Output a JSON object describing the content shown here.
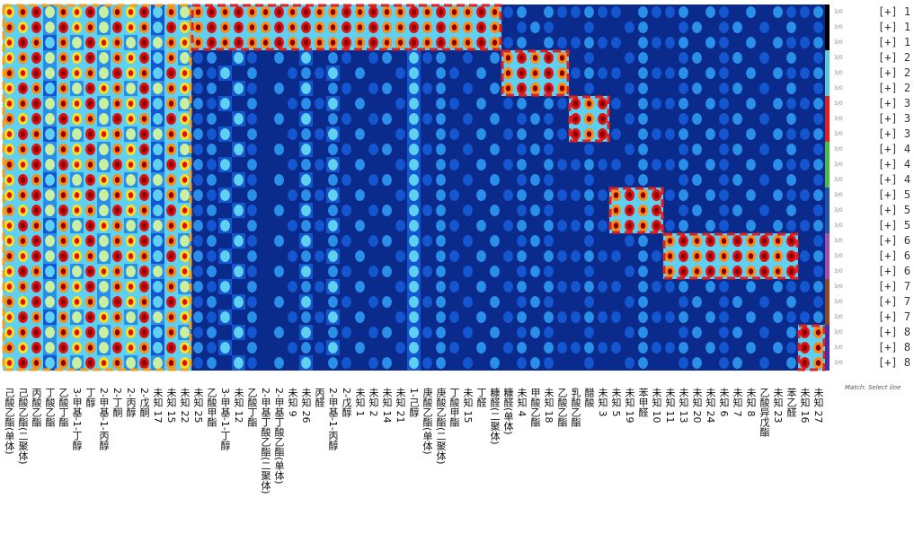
{
  "chart_data": {
    "type": "heatmap",
    "title": "",
    "value_scale": [
      0,
      9
    ],
    "colormap": [
      "#06123a",
      "#0a2a8c",
      "#1456d0",
      "#2a8fe8",
      "#5fd0f0",
      "#c8f0a0",
      "#ffe020",
      "#ff8a10",
      "#e01010",
      "#8a0000"
    ],
    "row_labels": [
      "[+] 1",
      "[+] 1",
      "[+] 1",
      "[+] 2",
      "[+] 2",
      "[+] 2",
      "[+] 3",
      "[+] 3",
      "[+] 3",
      "[+] 4",
      "[+] 4",
      "[+] 4",
      "[+] 5",
      "[+] 5",
      "[+] 5",
      "[+] 6",
      "[+] 6",
      "[+] 6",
      "[+] 7",
      "[+] 7",
      "[+] 7",
      "[+] 8",
      "[+] 8",
      "[+] 8"
    ],
    "row_tags": [
      "3/0",
      "3/0",
      "3/0",
      "3/0",
      "3/0",
      "3/0",
      "3/0",
      "3/0",
      "3/0",
      "3/0",
      "3/0",
      "3/0",
      "3/0",
      "3/0",
      "3/0",
      "3/0",
      "3/0",
      "3/0",
      "3/0",
      "3/0",
      "3/0",
      "3/0",
      "3/0",
      "3/0"
    ],
    "group_colors": [
      "#000000",
      "#5bc8d6",
      "#e02020",
      "#4cb848",
      "#2255aa",
      "#9b4fb0",
      "#8a4a2a",
      "#4a2ea0"
    ],
    "column_labels": [
      "己酸乙酯(单体)",
      "己酸乙酯(二聚体)",
      "丙酸乙酯",
      "丁酸乙酯",
      "乙酸丁酯",
      "3-甲基-1-丁醇",
      "丁醇",
      "2-甲基-1-丙醇",
      "2-丁酮",
      "2-丙醇",
      "2-戊酮",
      "未知 17",
      "未知 15",
      "未知 22",
      "未知 25",
      "乙酸甲酯",
      "3-甲基-1-丁醇",
      "未知 12",
      "乙酸丁酯",
      "2-甲基丁酸乙酯(二聚体)",
      "2-甲基丁酸乙酯(单体)",
      "未知 9",
      "未知 26",
      "丙醛",
      "2-甲基-1-丙醇",
      "2-戊醇",
      "未知 1",
      "未知 2",
      "未知 14",
      "未知 21",
      "1-己醇",
      "庚酸乙酯(单体)",
      "庚酸乙酯(二聚体)",
      "丁酸甲酯",
      "未知 15",
      "丁醛",
      "糠醛(二聚体)",
      "糠醛(单体)",
      "未知 4",
      "甲酸乙酯",
      "未知 18",
      "乙酸乙酯",
      "乳酸乙酯",
      "醋酸",
      "未知 3",
      "未知 5",
      "未知 19",
      "苯甲醛",
      "未知 10",
      "未知 11",
      "未知 13",
      "未知 20",
      "未知 24",
      "未知 6",
      "未知 7",
      "未知 8",
      "乙酸异戊酯",
      "未知 23",
      "苯乙醛",
      "未知 16",
      "未知 27"
    ],
    "values": [
      "7896879687958689898898988989889898898342433433243342432424334",
      "8796978697859789898898988989889898898234322322342234234232423",
      "7985869786968789898898988989889898898342433433243342432424334",
      "7896879687958634253142524313425341324898982322342234234232423",
      "8796978697859743524213435242135243142898983433243342432424334",
      "7985869786968734253142524313425341324898982322342234234232423",
      "7896879687958643524213435242135243142342439893243342432424334",
      "8796978697859734253142524313425341324234329892342234234232423",
      "7985869786968743524213435242135243142342439893243342432424334",
      "7896879687958634253142524313425341324234322322342234234232423",
      "8796978697859743524213435242135243142342433433243342432424334",
      "7985869786968734253142524313425341324234322322342234234232423",
      "7896879687958643524213435242135243142342433438989342432424334",
      "8796978697859734253142524313425341324234322328989234234232423",
      "7985869786968743524213435242135243142342433438989342432424334",
      "7896879687958634253142524313425341324234322322342898989898923",
      "8796978697859743524213435242135243142342433433243898989898934",
      "7985869786968734253142524313425341324234322322342898989898923",
      "7896879687958643524213435242135243142342433433243342432424334",
      "8796978697859734253142524313425341324234322322342234234232423",
      "7985869786968743524213435242135243142342433433243342432424334",
      "7896879687958634253142524313425341324234322322342234234232498",
      "8796978697859743524213435242135243142342433433243342432424398",
      "7985869786968734253142524313425341324234322322342234234232498"
    ],
    "highlight_boxes": [
      {
        "color": "#f0a020",
        "rows": [
          0,
          23
        ],
        "cols": [
          0,
          13
        ]
      },
      {
        "color": "#e02020",
        "rows": [
          0,
          2
        ],
        "cols": [
          14,
          36
        ]
      },
      {
        "color": "#e02020",
        "rows": [
          3,
          5
        ],
        "cols": [
          37,
          41
        ]
      },
      {
        "color": "#e02020",
        "rows": [
          6,
          8
        ],
        "cols": [
          42,
          44
        ]
      },
      {
        "color": "#e02020",
        "rows": [
          12,
          14
        ],
        "cols": [
          45,
          48
        ]
      },
      {
        "color": "#e02020",
        "rows": [
          15,
          17
        ],
        "cols": [
          49,
          58
        ]
      },
      {
        "color": "#e02020",
        "rows": [
          21,
          23
        ],
        "cols": [
          59,
          60
        ]
      }
    ]
  },
  "footer": "Match: Select line"
}
